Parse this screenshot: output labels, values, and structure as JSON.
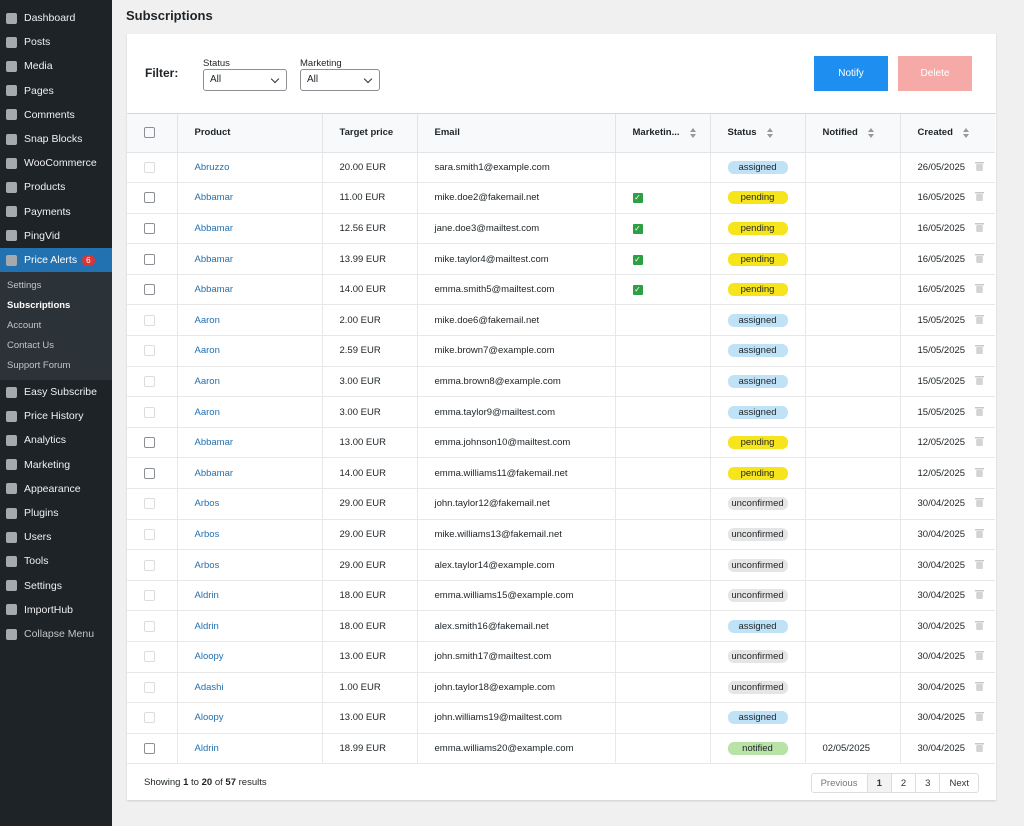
{
  "sidebar": {
    "menu_top": [
      "Dashboard",
      "Posts",
      "Media",
      "Pages",
      "Comments",
      "Snap Blocks",
      "WooCommerce",
      "Products",
      "Payments",
      "PingVid"
    ],
    "active": {
      "label": "Price Alerts",
      "badge": 6
    },
    "submenu": [
      {
        "label": "Settings",
        "current": false
      },
      {
        "label": "Subscriptions",
        "current": true
      },
      {
        "label": "Account",
        "current": false
      },
      {
        "label": "Contact Us",
        "current": false
      },
      {
        "label": "Support Forum",
        "current": false
      }
    ],
    "menu_bottom": [
      "Easy Subscribe",
      "Price History",
      "Analytics",
      "Marketing",
      "Appearance",
      "Plugins",
      "Users",
      "Tools",
      "Settings",
      "ImportHub"
    ],
    "collapse": "Collapse Menu"
  },
  "page": {
    "title": "Subscriptions"
  },
  "filter": {
    "label": "Filter:",
    "status": {
      "label": "Status",
      "value": "All"
    },
    "marketing": {
      "label": "Marketing",
      "value": "All"
    },
    "notify": "Notify",
    "delete": "Delete"
  },
  "table": {
    "headers": [
      {
        "label": "Product",
        "sortable": false
      },
      {
        "label": "Target price",
        "sortable": false
      },
      {
        "label": "Email",
        "sortable": false
      },
      {
        "label": "Marketin...",
        "sortable": true
      },
      {
        "label": "Status",
        "sortable": true
      },
      {
        "label": "Notified",
        "sortable": true
      },
      {
        "label": "Created",
        "sortable": true
      }
    ],
    "status_colors": {
      "assigned": "#bfe2f6",
      "pending": "#f6e41c",
      "unconfirmed": "#e5e5e5",
      "notified": "#b8e2a6"
    },
    "rows": [
      {
        "product": "Abruzzo",
        "price": "20.00 EUR",
        "email": "sara.smith1@example.com",
        "marketing": false,
        "status": "assigned",
        "notified": null,
        "created": "26/05/2025",
        "selectable": false
      },
      {
        "product": "Abbamar",
        "price": "11.00 EUR",
        "email": "mike.doe2@fakemail.net",
        "marketing": true,
        "status": "pending",
        "notified": null,
        "created": "16/05/2025",
        "selectable": true
      },
      {
        "product": "Abbamar",
        "price": "12.56 EUR",
        "email": "jane.doe3@mailtest.com",
        "marketing": true,
        "status": "pending",
        "notified": null,
        "created": "16/05/2025",
        "selectable": true
      },
      {
        "product": "Abbamar",
        "price": "13.99 EUR",
        "email": "mike.taylor4@mailtest.com",
        "marketing": true,
        "status": "pending",
        "notified": null,
        "created": "16/05/2025",
        "selectable": true
      },
      {
        "product": "Abbamar",
        "price": "14.00 EUR",
        "email": "emma.smith5@mailtest.com",
        "marketing": true,
        "status": "pending",
        "notified": null,
        "created": "16/05/2025",
        "selectable": true
      },
      {
        "product": "Aaron",
        "price": "2.00 EUR",
        "email": "mike.doe6@fakemail.net",
        "marketing": false,
        "status": "assigned",
        "notified": null,
        "created": "15/05/2025",
        "selectable": false
      },
      {
        "product": "Aaron",
        "price": "2.59 EUR",
        "email": "mike.brown7@example.com",
        "marketing": false,
        "status": "assigned",
        "notified": null,
        "created": "15/05/2025",
        "selectable": false
      },
      {
        "product": "Aaron",
        "price": "3.00 EUR",
        "email": "emma.brown8@example.com",
        "marketing": false,
        "status": "assigned",
        "notified": null,
        "created": "15/05/2025",
        "selectable": false
      },
      {
        "product": "Aaron",
        "price": "3.00 EUR",
        "email": "emma.taylor9@mailtest.com",
        "marketing": false,
        "status": "assigned",
        "notified": null,
        "created": "15/05/2025",
        "selectable": false
      },
      {
        "product": "Abbamar",
        "price": "13.00 EUR",
        "email": "emma.johnson10@mailtest.com",
        "marketing": false,
        "status": "pending",
        "notified": null,
        "created": "12/05/2025",
        "selectable": true
      },
      {
        "product": "Abbamar",
        "price": "14.00 EUR",
        "email": "emma.williams11@fakemail.net",
        "marketing": false,
        "status": "pending",
        "notified": null,
        "created": "12/05/2025",
        "selectable": true
      },
      {
        "product": "Arbos",
        "price": "29.00 EUR",
        "email": "john.taylor12@fakemail.net",
        "marketing": false,
        "status": "unconfirmed",
        "notified": null,
        "created": "30/04/2025",
        "selectable": false
      },
      {
        "product": "Arbos",
        "price": "29.00 EUR",
        "email": "mike.williams13@fakemail.net",
        "marketing": false,
        "status": "unconfirmed",
        "notified": null,
        "created": "30/04/2025",
        "selectable": false
      },
      {
        "product": "Arbos",
        "price": "29.00 EUR",
        "email": "alex.taylor14@example.com",
        "marketing": false,
        "status": "unconfirmed",
        "notified": null,
        "created": "30/04/2025",
        "selectable": false
      },
      {
        "product": "Aldrin",
        "price": "18.00 EUR",
        "email": "emma.williams15@example.com",
        "marketing": false,
        "status": "unconfirmed",
        "notified": null,
        "created": "30/04/2025",
        "selectable": false
      },
      {
        "product": "Aldrin",
        "price": "18.00 EUR",
        "email": "alex.smith16@fakemail.net",
        "marketing": false,
        "status": "assigned",
        "notified": null,
        "created": "30/04/2025",
        "selectable": false
      },
      {
        "product": "Aloopy",
        "price": "13.00 EUR",
        "email": "john.smith17@mailtest.com",
        "marketing": false,
        "status": "unconfirmed",
        "notified": null,
        "created": "30/04/2025",
        "selectable": false
      },
      {
        "product": "Adashi",
        "price": "1.00 EUR",
        "email": "john.taylor18@example.com",
        "marketing": false,
        "status": "unconfirmed",
        "notified": null,
        "created": "30/04/2025",
        "selectable": false
      },
      {
        "product": "Aloopy",
        "price": "13.00 EUR",
        "email": "john.williams19@mailtest.com",
        "marketing": false,
        "status": "assigned",
        "notified": null,
        "created": "30/04/2025",
        "selectable": false
      },
      {
        "product": "Aldrin",
        "price": "18.99 EUR",
        "email": "emma.williams20@example.com",
        "marketing": false,
        "status": "notified",
        "notified": "02/05/2025",
        "created": "30/04/2025",
        "selectable": true
      }
    ]
  },
  "footer": {
    "summary": {
      "words": [
        "Showing",
        "to",
        "of",
        "results"
      ],
      "from": 1,
      "to": 20,
      "total": 57
    },
    "pagination": {
      "previous": "Previous",
      "pages": [
        1,
        2,
        3
      ],
      "current": 1,
      "next": "Next"
    }
  }
}
